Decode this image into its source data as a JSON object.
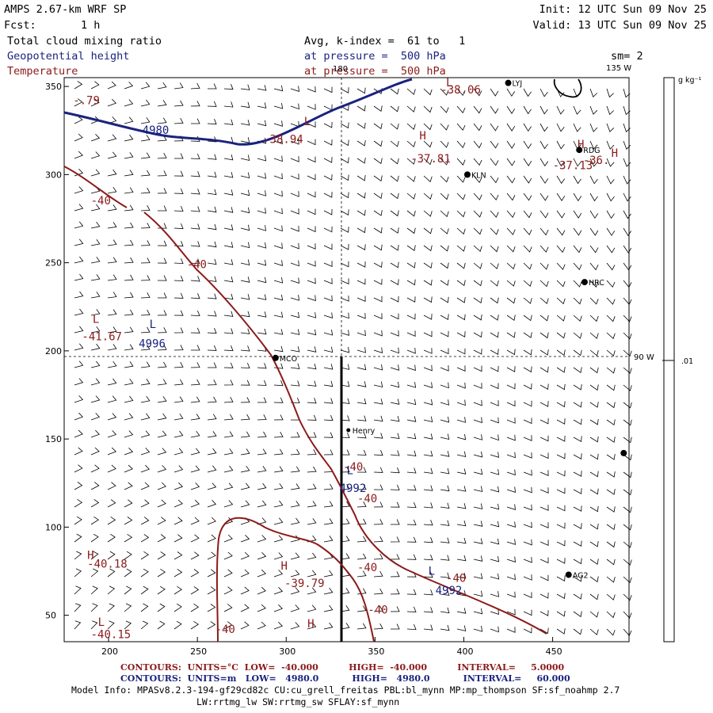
{
  "header": {
    "model": "AMPS 2.67-km WRF SP",
    "forecast_label": "Fcst:",
    "forecast_value": "1 h",
    "init": "Init: 12 UTC Sun 09 Nov 25",
    "valid": "Valid: 13 UTC Sun 09 Nov 25",
    "field1": "Total cloud mixing ratio",
    "field1_info": "Avg, k-index =  61 to   1",
    "field2": "Geopotential height",
    "field2_info": "at pressure =  500 hPa",
    "field3": "Temperature",
    "field3_info": "at pressure =  500 hPa",
    "smoothing": "sm= 2"
  },
  "map": {
    "meridian_180": "180",
    "meridian_135w": "135 W",
    "meridian_90w": "90 W",
    "x_ticks": [
      "200",
      "250",
      "300",
      "350",
      "400",
      "450"
    ],
    "y_ticks": [
      "350",
      "300",
      "250",
      "200",
      "150",
      "100",
      "50"
    ],
    "stations": [
      {
        "code": "LYJ",
        "x": 425,
        "y": 352
      },
      {
        "code": "RDG",
        "x": 465,
        "y": 314
      },
      {
        "code": "KLN",
        "x": 402,
        "y": 300
      },
      {
        "code": "HRC",
        "x": 468,
        "y": 239
      },
      {
        "code": "MCO",
        "x": 294,
        "y": 196
      },
      {
        "code": "Henry",
        "x": 335,
        "y": 155
      },
      {
        "code": "AG2",
        "x": 459,
        "y": 73
      },
      {
        "code": "",
        "x": 490,
        "y": 142
      }
    ],
    "temp_labels": [
      {
        "text": "-38.06",
        "x": 387,
        "y": 346
      },
      {
        "text": "-38.94",
        "x": 287,
        "y": 318
      },
      {
        "text": "-37.81",
        "x": 370,
        "y": 307
      },
      {
        "text": "-37.13",
        "x": 450,
        "y": 303
      },
      {
        "text": "-36.",
        "x": 467,
        "y": 306
      },
      {
        "text": "-40",
        "x": 190,
        "y": 283
      },
      {
        "text": "-40",
        "x": 244,
        "y": 247
      },
      {
        "text": "-41.67",
        "x": 185,
        "y": 206
      },
      {
        "text": "-40",
        "x": 332,
        "y": 132
      },
      {
        "text": "-40",
        "x": 340,
        "y": 114
      },
      {
        "text": "-40.18",
        "x": 188,
        "y": 77
      },
      {
        "text": "-39.79",
        "x": 299,
        "y": 66
      },
      {
        "text": "-40",
        "x": 340,
        "y": 75
      },
      {
        "text": "-40",
        "x": 390,
        "y": 69
      },
      {
        "text": "-40",
        "x": 346,
        "y": 51
      },
      {
        "text": "-40",
        "x": 260,
        "y": 40
      },
      {
        "text": "-40.15",
        "x": 190,
        "y": 37
      },
      {
        "text": "-.79",
        "x": 180,
        "y": 340
      }
    ],
    "temp_markers": [
      {
        "text": "L",
        "x": 310,
        "y": 328
      },
      {
        "text": "H",
        "x": 375,
        "y": 320
      },
      {
        "text": "H",
        "x": 464,
        "y": 315
      },
      {
        "text": "H",
        "x": 483,
        "y": 310
      },
      {
        "text": "L",
        "x": 191,
        "y": 216
      },
      {
        "text": "H",
        "x": 188,
        "y": 82
      },
      {
        "text": "H",
        "x": 297,
        "y": 76
      },
      {
        "text": "L",
        "x": 194,
        "y": 44
      },
      {
        "text": "H",
        "x": 312,
        "y": 43
      },
      {
        "text": "L",
        "x": 390,
        "y": 350
      }
    ],
    "height_labels": [
      {
        "text": "4980",
        "x": 219,
        "y": 323
      },
      {
        "text": "4996",
        "x": 217,
        "y": 202
      },
      {
        "text": "4992",
        "x": 330,
        "y": 120
      },
      {
        "text": "4992",
        "x": 384,
        "y": 62
      }
    ],
    "height_markers": [
      {
        "text": "L",
        "x": 223,
        "y": 213
      },
      {
        "text": "L",
        "x": 334,
        "y": 130
      },
      {
        "text": "L",
        "x": 380,
        "y": 73
      }
    ]
  },
  "colorbar": {
    "unit": "g kg⁻¹",
    "value": ".01"
  },
  "footer": {
    "contours_temp": "CONTOURS:  UNITS=°C  LOW=  -40.000          HIGH=  -40.000          INTERVAL=     5.0000",
    "contours_height": "CONTOURS:  UNITS=m   LOW=   4980.0           HIGH=   4980.0           INTERVAL=     60.000",
    "model_info": "Model Info: MPASv8.2.3-194-gf29cd82c CU:cu_grell_freitas PBL:bl_mynn MP:mp_thompson SF:sf_noahmp 2.7",
    "model_info2": "LW:rrtmg_lw SW:rrtmg_sw SFLAY:sf_mynn"
  },
  "colors": {
    "height": "#1a237e",
    "temperature": "#8b1a1a",
    "barbs": "#000000"
  }
}
